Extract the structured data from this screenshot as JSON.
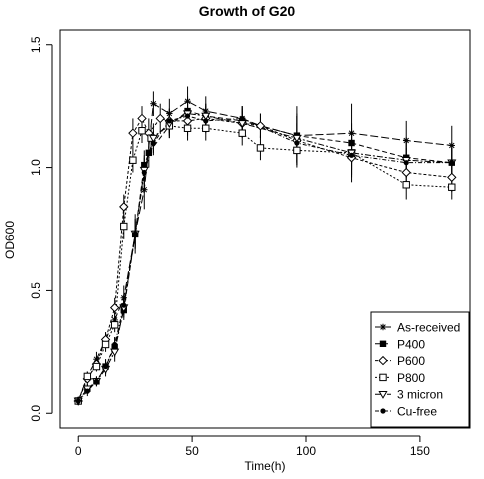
{
  "chart_data": {
    "type": "line",
    "title": "Growth of G20",
    "xlabel": "Time(h)",
    "ylabel": "OD600",
    "xlim": [
      -8,
      172
    ],
    "ylim": [
      -0.06,
      1.56
    ],
    "x_ticks": [
      0,
      50,
      100,
      150
    ],
    "x_tick_labels": [
      "0",
      "50",
      "100",
      "150"
    ],
    "y_ticks": [
      0.0,
      0.5,
      1.0,
      1.5
    ],
    "y_tick_labels": [
      "0.0",
      "0.5",
      "1.0",
      "1.5"
    ],
    "grid": false,
    "legend_position": "bottom-right",
    "series": [
      {
        "name": "As-received",
        "marker": "asterisk",
        "dash": "8,3",
        "x": [
          0,
          4,
          8,
          12,
          16,
          20,
          25,
          29,
          33,
          40,
          48,
          56,
          72,
          80,
          96,
          120,
          144,
          164
        ],
        "y": [
          0.05,
          0.15,
          0.22,
          0.3,
          0.38,
          0.47,
          0.73,
          0.91,
          1.26,
          1.22,
          1.27,
          1.23,
          1.2,
          1.17,
          1.13,
          1.14,
          1.11,
          1.09
        ],
        "err": [
          0,
          0.02,
          0.03,
          0.03,
          0.03,
          0.05,
          0.08,
          0.08,
          0.05,
          0.06,
          0.06,
          0.06,
          0.05,
          0.05,
          0.12,
          0.12,
          0.08,
          0.08
        ]
      },
      {
        "name": "P400",
        "marker": "square-filled",
        "dash": "5,3",
        "x": [
          0,
          4,
          8,
          12,
          16,
          20,
          25,
          29,
          31,
          40,
          48,
          56,
          72,
          96,
          120,
          144,
          164
        ],
        "y": [
          0.05,
          0.1,
          0.13,
          0.19,
          0.27,
          0.42,
          0.73,
          1.01,
          1.06,
          1.17,
          1.23,
          1.21,
          1.19,
          1.13,
          1.1,
          1.04,
          1.02
        ],
        "err": [
          0,
          0.02,
          0.02,
          0.03,
          0.04,
          0.04,
          0.06,
          0.06,
          0.06,
          0.05,
          0.06,
          0.05,
          0.06,
          0.08,
          0.08,
          0.08,
          0.06
        ]
      },
      {
        "name": "P600",
        "marker": "diamond-open",
        "dash": "3,2",
        "x": [
          0,
          4,
          8,
          12,
          16,
          20,
          24,
          28,
          31,
          36,
          40,
          48,
          56,
          72,
          80,
          96,
          120,
          144,
          164
        ],
        "y": [
          0.05,
          0.14,
          0.2,
          0.3,
          0.43,
          0.84,
          1.14,
          1.2,
          1.14,
          1.2,
          1.19,
          1.19,
          1.2,
          1.18,
          1.17,
          1.11,
          1.04,
          0.98,
          0.96
        ],
        "err": [
          0,
          0.02,
          0.02,
          0.03,
          0.04,
          0.05,
          0.06,
          0.05,
          0.06,
          0.06,
          0.05,
          0.06,
          0.05,
          0.05,
          0.05,
          0.1,
          0.1,
          0.06,
          0.06
        ]
      },
      {
        "name": "P800",
        "marker": "square-open",
        "dash": "2,2",
        "x": [
          0,
          4,
          8,
          12,
          16,
          20,
          24,
          28,
          32,
          40,
          48,
          56,
          72,
          80,
          96,
          120,
          144,
          164
        ],
        "y": [
          0.05,
          0.15,
          0.19,
          0.28,
          0.36,
          0.76,
          1.03,
          1.15,
          1.12,
          1.17,
          1.16,
          1.16,
          1.14,
          1.08,
          1.07,
          1.06,
          0.93,
          0.92
        ],
        "err": [
          0,
          0.02,
          0.02,
          0.03,
          0.03,
          0.05,
          0.05,
          0.05,
          0.05,
          0.05,
          0.05,
          0.05,
          0.05,
          0.05,
          0.07,
          0.07,
          0.06,
          0.05
        ]
      },
      {
        "name": "3 micron",
        "marker": "triangle-down-open",
        "dash": "6,2,2,2",
        "x": [
          0,
          4,
          8,
          12,
          16,
          20,
          25,
          29,
          33,
          40,
          48,
          56,
          72,
          96,
          120,
          144,
          164
        ],
        "y": [
          0.05,
          0.1,
          0.13,
          0.18,
          0.25,
          0.43,
          0.73,
          0.99,
          1.12,
          1.18,
          1.22,
          1.21,
          1.18,
          1.12,
          1.06,
          1.03,
          1.02
        ],
        "err": [
          0,
          0.02,
          0.02,
          0.03,
          0.04,
          0.04,
          0.06,
          0.06,
          0.06,
          0.05,
          0.05,
          0.05,
          0.06,
          0.1,
          0.1,
          0.07,
          0.06
        ]
      },
      {
        "name": "Cu-free",
        "marker": "dot-filled",
        "dash": "4,2,1,2",
        "x": [
          0,
          4,
          8,
          12,
          16,
          20,
          25,
          29,
          33,
          40,
          48,
          56,
          72,
          96,
          120,
          144,
          164
        ],
        "y": [
          0.05,
          0.09,
          0.13,
          0.19,
          0.28,
          0.44,
          0.73,
          0.98,
          1.1,
          1.19,
          1.21,
          1.19,
          1.2,
          1.1,
          1.05,
          1.02,
          1.02
        ],
        "err": [
          0,
          0.02,
          0.02,
          0.03,
          0.03,
          0.04,
          0.05,
          0.06,
          0.05,
          0.05,
          0.05,
          0.05,
          0.05,
          0.08,
          0.08,
          0.06,
          0.06
        ]
      }
    ]
  }
}
